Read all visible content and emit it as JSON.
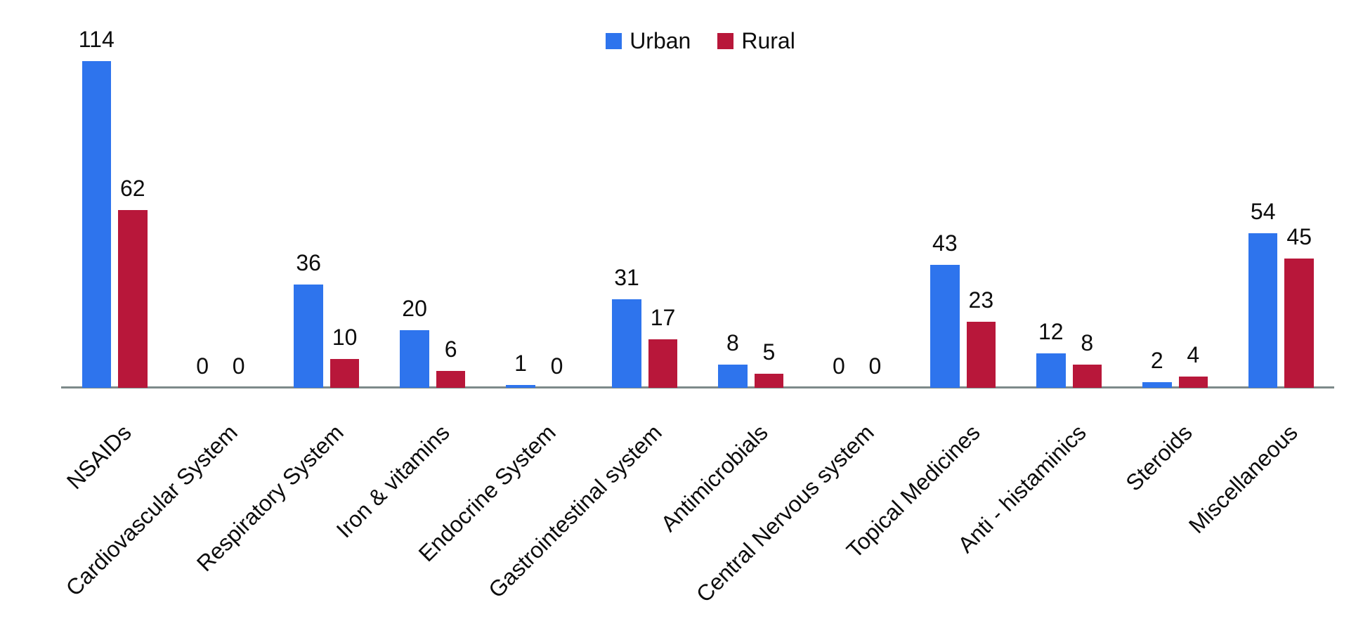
{
  "chart_data": {
    "type": "bar",
    "title": "",
    "xlabel": "",
    "ylabel": "",
    "categories": [
      "NSAIDs",
      "Cardiovascular System",
      "Respiratory System",
      "Iron & vitamins",
      "Endocrine System",
      "Gastrointestinal system",
      "Antimicrobials",
      "Central Nervous system",
      "Topical Medicines",
      "Anti - histaminics",
      "Steroids",
      "Miscellaneous"
    ],
    "series": [
      {
        "name": "Urban",
        "color": "#2e74ed",
        "values": [
          114,
          0,
          36,
          20,
          1,
          31,
          8,
          0,
          43,
          12,
          2,
          54
        ]
      },
      {
        "name": "Rural",
        "color": "#b8173a",
        "values": [
          62,
          0,
          10,
          6,
          0,
          17,
          5,
          0,
          23,
          8,
          4,
          45
        ]
      }
    ],
    "value_labels_shown": true,
    "legend_position": "top",
    "grid": false,
    "y_axis_shown": false,
    "ylim": [
      0,
      120
    ],
    "axis_line_color": "#7d8a8a",
    "text_color": "#0d0d0d",
    "background_color": "#ffffff"
  }
}
